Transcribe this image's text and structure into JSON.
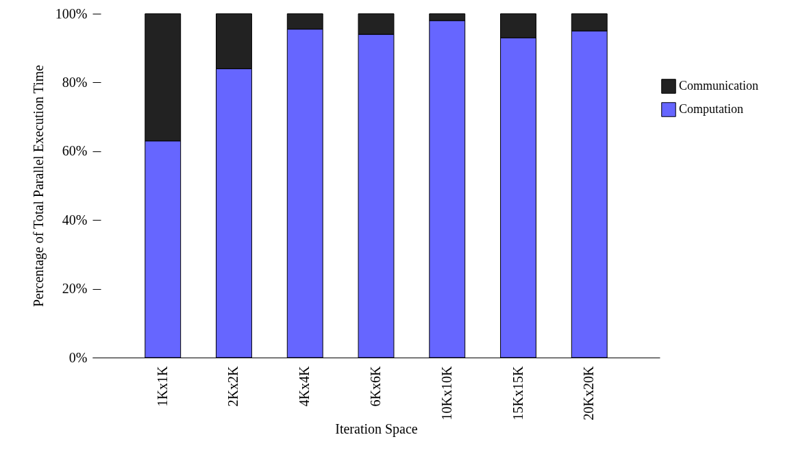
{
  "chart_data": {
    "type": "bar",
    "stacked": true,
    "xlabel": "Iteration Space",
    "ylabel": "Percentage of Total Parallel Execution Time",
    "categories": [
      "1Kx1K",
      "2Kx2K",
      "4Kx4K",
      "6Kx6K",
      "10Kx10K",
      "15Kx15K",
      "20Kx20K"
    ],
    "series": [
      {
        "name": "Computation",
        "color": "#6666ff",
        "values": [
          63,
          84,
          95.5,
          94,
          98,
          93,
          95
        ]
      },
      {
        "name": "Communication",
        "color": "#222222",
        "values": [
          37,
          16,
          4.5,
          6,
          2,
          7,
          5
        ]
      }
    ],
    "ylim": [
      0,
      100
    ],
    "yticks": [
      {
        "value": 0,
        "label": "0%"
      },
      {
        "value": 20,
        "label": "20%"
      },
      {
        "value": 40,
        "label": "40%"
      },
      {
        "value": 60,
        "label": "60%"
      },
      {
        "value": 80,
        "label": "80%"
      },
      {
        "value": 100,
        "label": "100%"
      }
    ],
    "legend": "right",
    "grid": false
  }
}
